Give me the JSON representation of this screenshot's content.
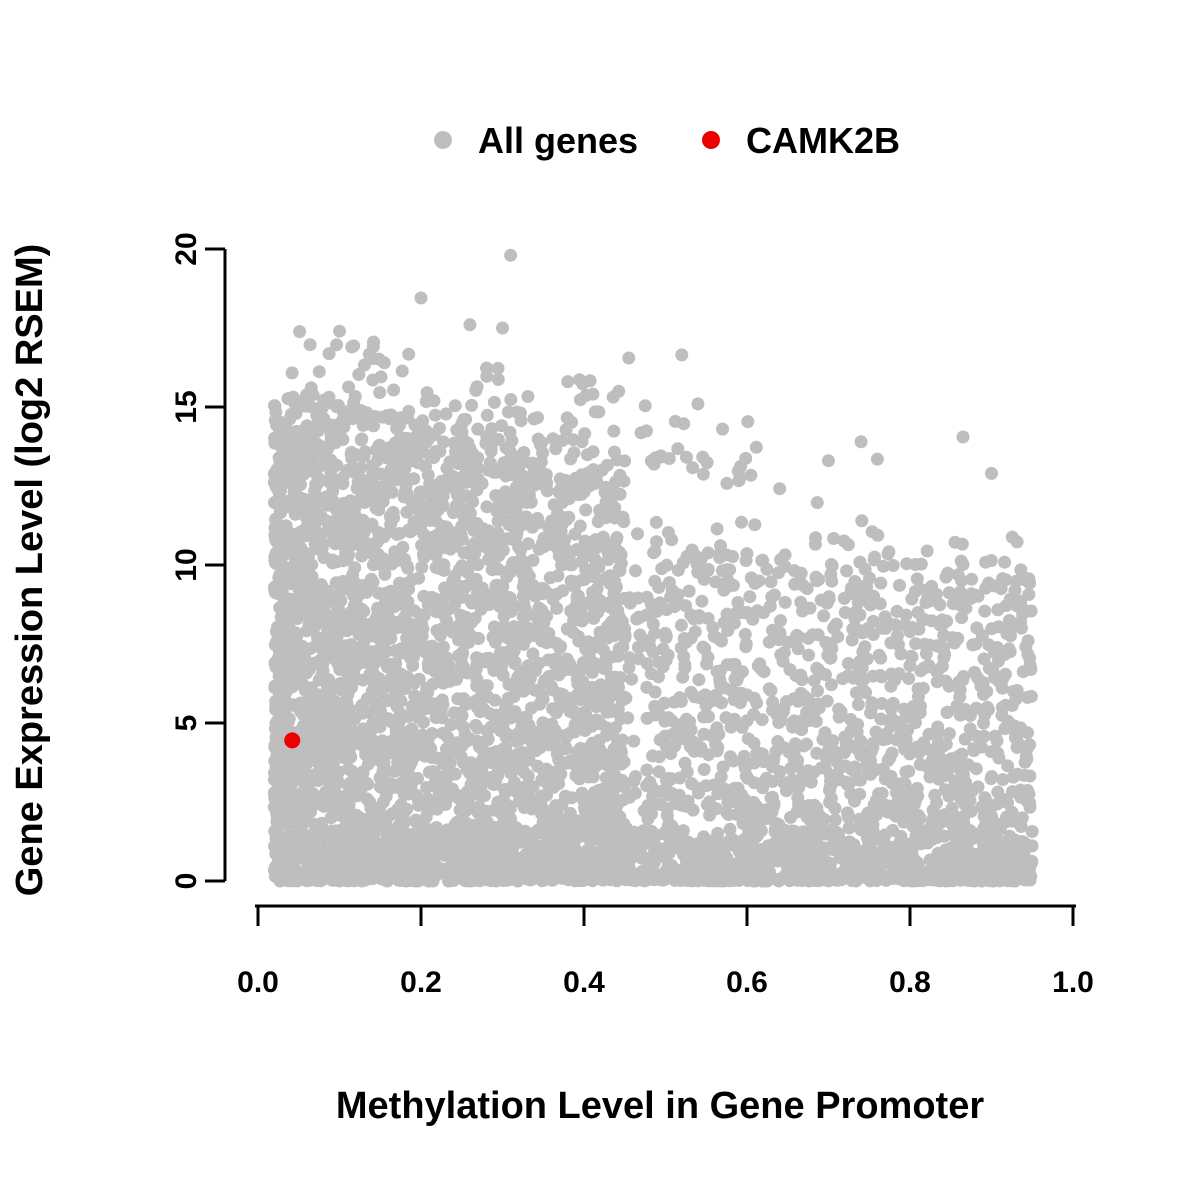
{
  "legend": {
    "items": [
      {
        "label": "All genes",
        "color": "#bebebe"
      },
      {
        "label": "CAMK2B",
        "color": "#ee0000"
      }
    ]
  },
  "axes": {
    "x_label": "Methylation Level in Gene Promoter",
    "y_label": "Gene Expression Level (log2 RSEM)",
    "x_tick_labels": [
      "0.0",
      "0.2",
      "0.4",
      "0.6",
      "0.8",
      "1.0"
    ],
    "y_tick_labels": [
      "0",
      "5",
      "10",
      "15",
      "20"
    ]
  },
  "chart_data": {
    "type": "scatter",
    "title": "",
    "xlabel": "Methylation Level in Gene Promoter",
    "ylabel": "Gene Expression Level (log2 RSEM)",
    "xlim": [
      0,
      1
    ],
    "ylim": [
      0,
      20
    ],
    "x_ticks": [
      0,
      0.2,
      0.4,
      0.6,
      0.8,
      1.0
    ],
    "y_ticks": [
      0,
      5,
      10,
      15,
      20
    ],
    "grid": false,
    "legend_position": "top-center",
    "point_radius": 6.5,
    "series": [
      {
        "name": "All genes",
        "color": "#bebebe",
        "n_points_est": 5500,
        "distribution": "Dense cloud of all genes: methylation 0.02-0.95; expression 0-16 at low methylation with upper envelope declining to ~11-12 at high methylation; very dense for methylation < 0.45, sparser beyond; dense band of near-zero expression across full methylation range",
        "generator": {
          "seed": 421,
          "left_cloud_n": 3000,
          "right_cloud_n": 1500,
          "bottom_band_n": 800,
          "top_scatter_n": 130
        },
        "notable_outliers": [
          [
            0.31,
            19.8
          ],
          [
            0.2,
            18.45
          ],
          [
            0.26,
            17.6
          ],
          [
            0.3,
            17.5
          ],
          [
            0.1,
            17.4
          ],
          [
            0.115,
            16.9
          ],
          [
            0.455,
            16.55
          ],
          [
            0.52,
            16.65
          ],
          [
            0.155,
            16.4
          ],
          [
            0.74,
            13.9
          ],
          [
            0.865,
            14.05
          ],
          [
            0.7,
            13.3
          ],
          [
            0.76,
            13.35
          ],
          [
            0.9,
            12.9
          ],
          [
            0.57,
            14.3
          ]
        ]
      },
      {
        "name": "CAMK2B",
        "color": "#ee0000",
        "points": [
          [
            0.042,
            4.45
          ]
        ]
      }
    ]
  }
}
